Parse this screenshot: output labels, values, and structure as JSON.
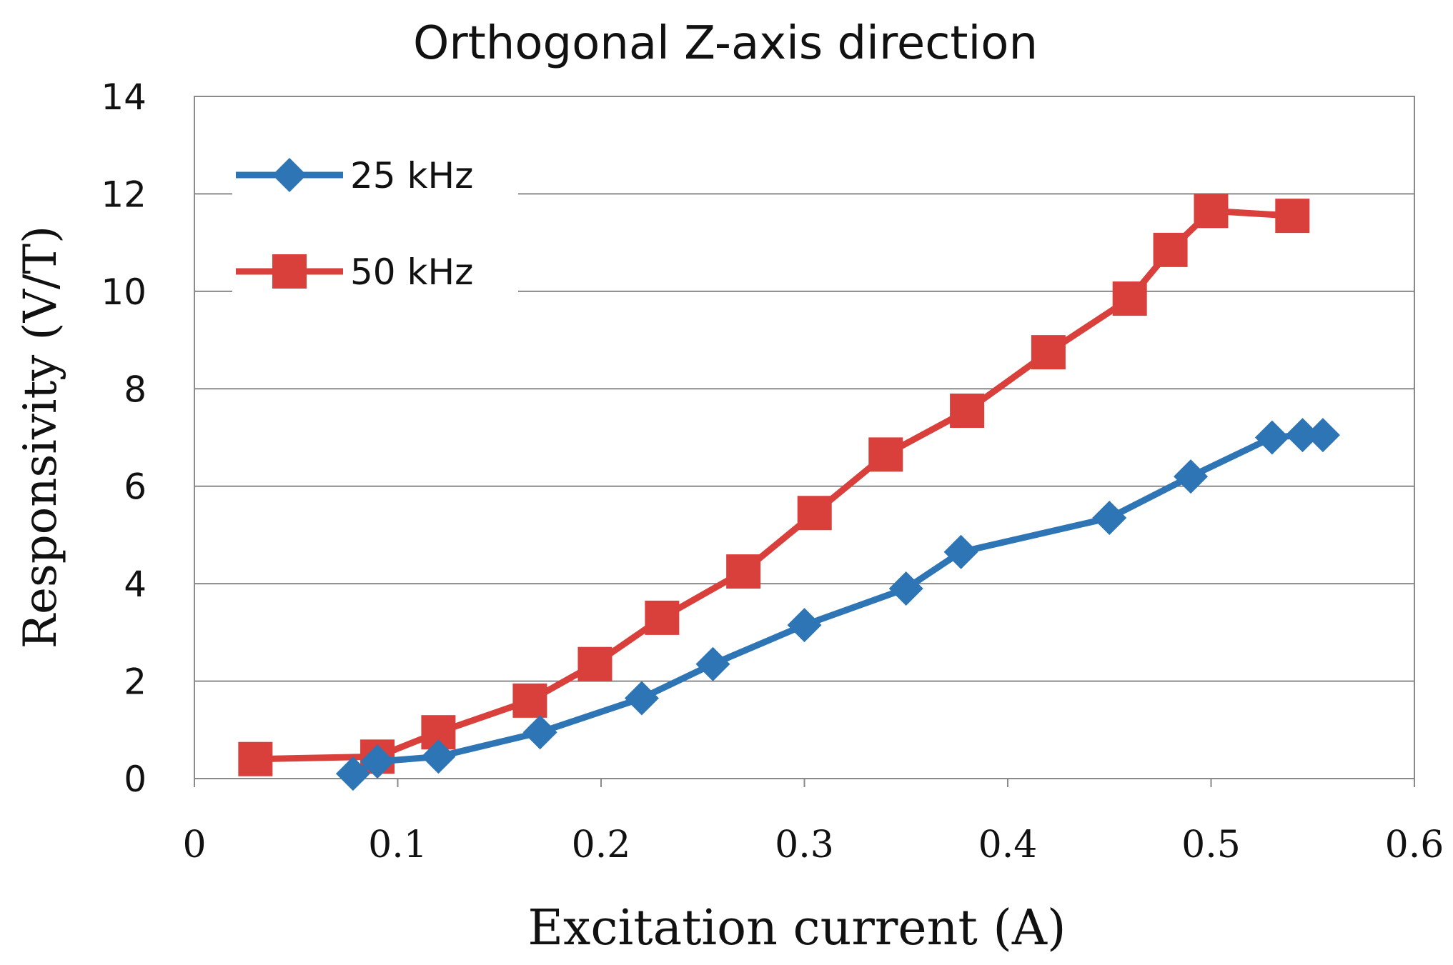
{
  "chart_data": {
    "type": "line",
    "title": "Orthogonal Z-axis direction",
    "xlabel": "Excitation current  (A)",
    "ylabel": "Responsivity  (V/T)",
    "xlim": [
      0,
      0.6
    ],
    "ylim": [
      0,
      14
    ],
    "x_ticks": [
      0,
      0.1,
      0.2,
      0.3,
      0.4,
      0.5,
      0.6
    ],
    "x_tick_labels": [
      "0",
      "0.1",
      "0.2",
      "0.3",
      "0.4",
      "0.5",
      "0.6"
    ],
    "y_ticks": [
      0,
      2,
      4,
      6,
      8,
      10,
      12,
      14
    ],
    "y_tick_labels": [
      "0",
      "2",
      "4",
      "6",
      "8",
      "10",
      "12",
      "14"
    ],
    "grid": "horizontal",
    "legend_position": "top-left",
    "series": [
      {
        "name": "25 kHz",
        "color": "#2E75B6",
        "marker": "diamond",
        "x": [
          0.078,
          0.09,
          0.12,
          0.17,
          0.22,
          0.255,
          0.3,
          0.35,
          0.377,
          0.45,
          0.49,
          0.53,
          0.545,
          0.555
        ],
        "y": [
          0.1,
          0.35,
          0.45,
          0.95,
          1.65,
          2.35,
          3.15,
          3.9,
          4.65,
          5.35,
          6.2,
          7.0,
          7.05,
          7.05
        ]
      },
      {
        "name": "50 kHz",
        "color": "#D9403C",
        "marker": "square",
        "x": [
          0.03,
          0.09,
          0.12,
          0.165,
          0.197,
          0.23,
          0.27,
          0.305,
          0.34,
          0.38,
          0.42,
          0.46,
          0.48,
          0.5,
          0.54
        ],
        "y": [
          0.4,
          0.45,
          0.95,
          1.6,
          2.35,
          3.3,
          4.25,
          5.45,
          6.65,
          7.55,
          8.75,
          9.85,
          10.85,
          11.65,
          11.55
        ]
      }
    ]
  }
}
